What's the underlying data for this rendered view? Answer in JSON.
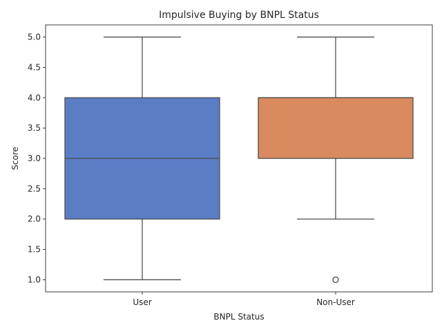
{
  "chart_data": {
    "type": "box",
    "title": "Impulsive Buying by BNPL Status",
    "xlabel": "BNPL Status",
    "ylabel": "Score",
    "categories": [
      "User",
      "Non-User"
    ],
    "ylim": [
      0.8,
      5.2
    ],
    "yticks": [
      1.0,
      1.5,
      2.0,
      2.5,
      3.0,
      3.5,
      4.0,
      4.5,
      5.0
    ],
    "ytick_labels": [
      "1.0",
      "1.5",
      "2.0",
      "2.5",
      "3.0",
      "3.5",
      "4.0",
      "4.5",
      "5.0"
    ],
    "grid": false,
    "boxes": [
      {
        "category": "User",
        "whisker_low": 1.0,
        "q1": 2.0,
        "median": 3.0,
        "q3": 4.0,
        "whisker_high": 5.0,
        "outliers": [],
        "color": "#5a7dc4"
      },
      {
        "category": "Non-User",
        "whisker_low": 2.0,
        "q1": 3.0,
        "median": 4.0,
        "q3": 4.0,
        "whisker_high": 5.0,
        "outliers": [
          1.0
        ],
        "color": "#da8a5f"
      }
    ],
    "line_color": "#4d4d4d"
  }
}
